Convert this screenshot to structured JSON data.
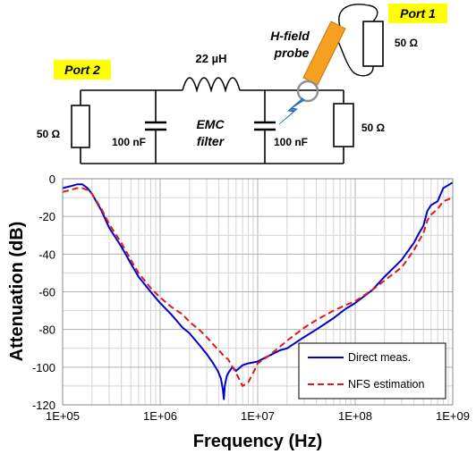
{
  "circuit": {
    "port1_label": "Port 1",
    "port2_label": "Port 2",
    "probe_label_line1": "H-field",
    "probe_label_line2": "probe",
    "inductor_label": "22 µH",
    "filter_label_line1": "EMC",
    "filter_label_line2": "filter",
    "cap_left_label": "100 nF",
    "cap_right_label": "100 nF",
    "res_left_label": "50 Ω",
    "res_right_label": "50 Ω",
    "res_port1_label": "50 Ω",
    "colors": {
      "port_tag": "#ffff00",
      "probe": "#f5a020",
      "spark": "#3a7fd0"
    }
  },
  "chart_data": {
    "type": "line",
    "xlabel": "Frequency (Hz)",
    "ylabel": "Attenuation (dB)",
    "x_scale": "log",
    "xlim": [
      100000,
      1000000000
    ],
    "ylim": [
      -120,
      0
    ],
    "x_tick_labels": [
      "1E+05",
      "1E+06",
      "1E+07",
      "1E+08",
      "1E+09"
    ],
    "y_tick_labels": [
      "0",
      "-20",
      "-40",
      "-60",
      "-80",
      "-100",
      "-120"
    ],
    "grid": true,
    "legend_position": "bottom-right",
    "series": [
      {
        "name": "Direct meas.",
        "color": "#0000c8",
        "dash": "solid",
        "x": [
          100000,
          120000,
          140000,
          160000,
          180000,
          200000,
          250000,
          300000,
          400000,
          500000,
          600000,
          800000,
          1000000,
          1300000,
          1700000,
          2000000,
          2500000,
          3000000,
          3500000,
          3900000,
          4200000,
          4400000,
          4500000,
          4600000,
          4800000,
          5000000,
          5500000,
          6000000,
          7000000,
          8000000,
          10000000,
          13000000,
          17000000,
          20000000,
          30000000,
          40000000,
          60000000,
          80000000,
          100000000,
          150000000,
          200000000,
          300000000,
          400000000,
          450000000,
          500000000,
          550000000,
          600000000,
          700000000,
          800000000,
          1000000000
        ],
        "y": [
          -5,
          -4,
          -3,
          -3,
          -5,
          -8,
          -17,
          -26,
          -36,
          -45,
          -52,
          -60,
          -66,
          -72,
          -79,
          -82,
          -88,
          -93,
          -98,
          -102,
          -106,
          -112,
          -117,
          -110,
          -105,
          -103,
          -100,
          -102,
          -99,
          -98,
          -97,
          -94,
          -91,
          -90,
          -84,
          -80,
          -74,
          -69,
          -66,
          -59,
          -52,
          -43,
          -34,
          -29,
          -25,
          -17,
          -14,
          -12,
          -5,
          -2
        ]
      },
      {
        "name": "NFS estimation",
        "color": "#e01818",
        "dash": "dashed",
        "x": [
          100000,
          120000,
          140000,
          160000,
          180000,
          200000,
          250000,
          300000,
          400000,
          500000,
          600000,
          800000,
          1000000,
          1300000,
          1700000,
          2000000,
          2500000,
          3000000,
          3500000,
          4000000,
          4500000,
          5000000,
          6000000,
          7000000,
          8000000,
          9000000,
          10000000,
          13000000,
          17000000,
          20000000,
          30000000,
          40000000,
          60000000,
          80000000,
          100000000,
          150000000,
          200000000,
          300000000,
          400000000,
          450000000,
          500000000,
          550000000,
          600000000,
          700000000,
          800000000,
          1000000000
        ],
        "y": [
          -7,
          -6,
          -5,
          -5,
          -6,
          -8,
          -16,
          -24,
          -34,
          -43,
          -50,
          -58,
          -63,
          -68,
          -72,
          -76,
          -80,
          -84,
          -88,
          -91,
          -94,
          -96,
          -103,
          -110,
          -108,
          -103,
          -98,
          -94,
          -89,
          -86,
          -79,
          -75,
          -70,
          -67,
          -65,
          -59,
          -54,
          -47,
          -38,
          -33,
          -29,
          -22,
          -19,
          -16,
          -12,
          -10
        ]
      }
    ]
  }
}
